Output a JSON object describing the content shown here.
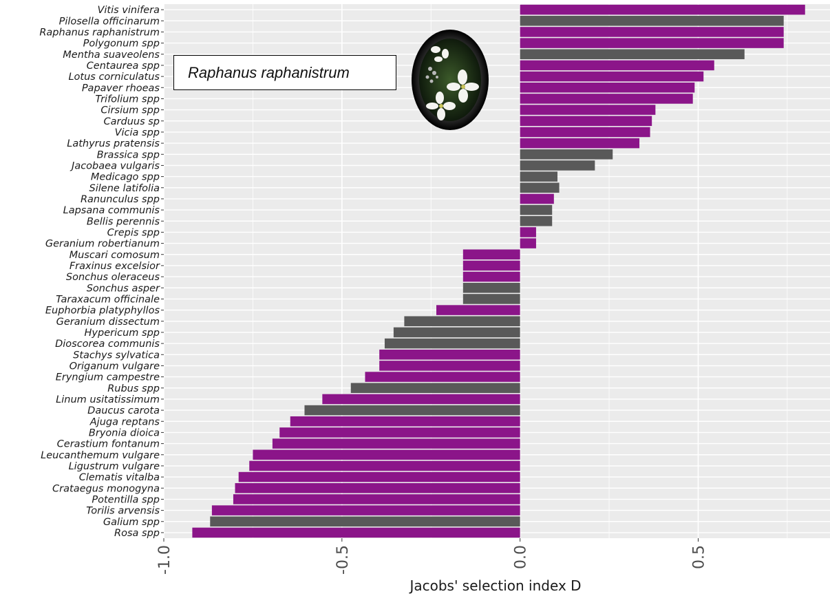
{
  "chart_data": {
    "type": "bar",
    "orientation": "horizontal",
    "title": "",
    "xlabel": "Jacobs' selection index D",
    "ylabel": "",
    "xlim": [
      -1.0,
      0.87
    ],
    "xticks": [
      -1.0,
      -0.5,
      0.0,
      0.5
    ],
    "xtick_labels": [
      "-1.0",
      "-0.5",
      "0.0",
      "0.5"
    ],
    "grid": true,
    "colors": {
      "purple": "#8b1589",
      "gray": "#595959",
      "panel": "#ebebeb",
      "grid": "#ffffff"
    },
    "categories": [
      "Vitis vinifera",
      "Pilosella officinarum",
      "Raphanus raphanistrum",
      "Polygonum spp",
      "Mentha suaveolens",
      "Centaurea spp",
      "Lotus corniculatus",
      "Papaver rhoeas",
      "Trifolium spp",
      "Cirsium spp",
      "Carduus sp",
      "Vicia spp",
      "Lathyrus pratensis",
      "Brassica spp",
      "Jacobaea vulgaris",
      "Medicago spp",
      "Silene latifolia",
      "Ranunculus spp",
      "Lapsana communis",
      "Bellis perennis",
      "Crepis spp",
      "Geranium robertianum",
      "Muscari comosum",
      "Fraxinus excelsior",
      "Sonchus oleraceus",
      "Sonchus asper",
      "Taraxacum officinale",
      "Euphorbia platyphyllos",
      "Geranium dissectum",
      "Hypericum spp",
      "Dioscorea communis",
      "Stachys sylvatica",
      "Origanum vulgare",
      "Eryngium campestre",
      "Rubus spp",
      "Linum usitatissimum",
      "Daucus carota",
      "Ajuga reptans",
      "Bryonia dioica",
      "Cerastium fontanum",
      "Leucanthemum vulgare",
      "Ligustrum vulgare",
      "Clematis vitalba",
      "Crataegus monogyna",
      "Potentilla spp",
      "Torilis arvensis",
      "Galium spp",
      "Rosa spp"
    ],
    "values": [
      0.8,
      0.74,
      0.74,
      0.74,
      0.63,
      0.545,
      0.515,
      0.49,
      0.485,
      0.38,
      0.37,
      0.365,
      0.335,
      0.26,
      0.21,
      0.105,
      0.11,
      0.095,
      0.09,
      0.09,
      0.045,
      0.045,
      -0.16,
      -0.16,
      -0.16,
      -0.16,
      -0.16,
      -0.235,
      -0.325,
      -0.355,
      -0.38,
      -0.395,
      -0.395,
      -0.435,
      -0.475,
      -0.555,
      -0.605,
      -0.645,
      -0.675,
      -0.695,
      -0.75,
      -0.76,
      -0.79,
      -0.8,
      -0.805,
      -0.865,
      -0.87,
      -0.92
    ],
    "bar_colors": [
      "purple",
      "gray",
      "purple",
      "purple",
      "gray",
      "purple",
      "purple",
      "purple",
      "purple",
      "purple",
      "purple",
      "purple",
      "purple",
      "gray",
      "gray",
      "gray",
      "gray",
      "purple",
      "gray",
      "gray",
      "purple",
      "purple",
      "purple",
      "purple",
      "purple",
      "gray",
      "gray",
      "purple",
      "gray",
      "gray",
      "gray",
      "purple",
      "purple",
      "purple",
      "gray",
      "purple",
      "gray",
      "purple",
      "purple",
      "purple",
      "purple",
      "purple",
      "purple",
      "purple",
      "purple",
      "purple",
      "gray",
      "purple"
    ],
    "annotation": "Raphanus raphanistrum"
  }
}
